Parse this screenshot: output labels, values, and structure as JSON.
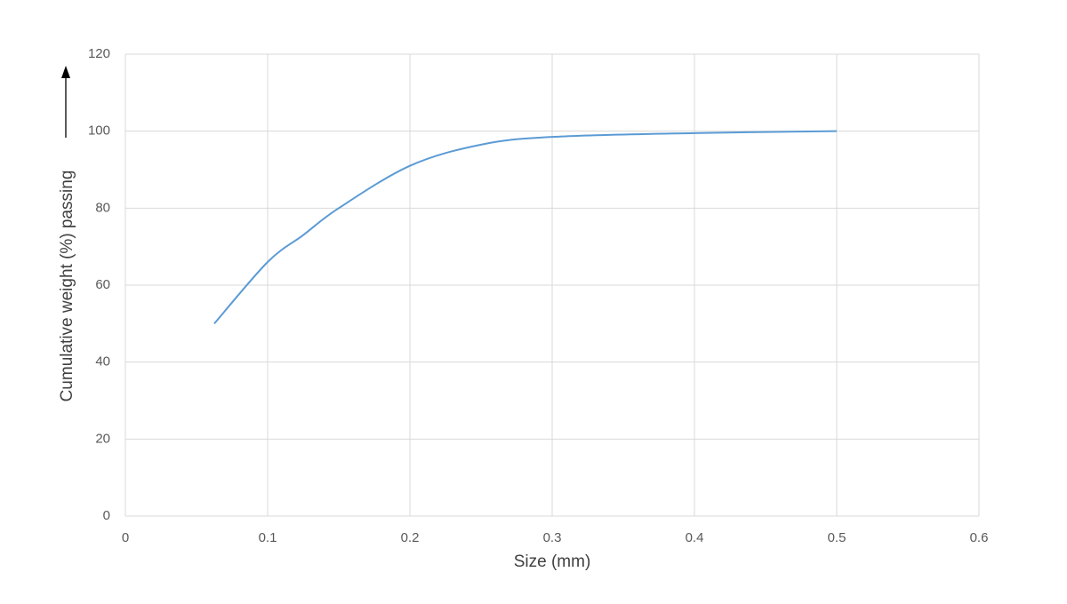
{
  "chart_data": {
    "type": "line",
    "x_label": "Size (mm)",
    "y_label": "Cumulative weight (%) passing",
    "x": [
      0.0625,
      0.1,
      0.125,
      0.15,
      0.2,
      0.25,
      0.3,
      0.4,
      0.5
    ],
    "series": [
      {
        "color": "#5b9bd5",
        "values": [
          50,
          66,
          73,
          80,
          91,
          96.5,
          98.5,
          99.5,
          100
        ]
      }
    ],
    "xlim": [
      0,
      0.6
    ],
    "xticks": [
      0,
      0.1,
      0.2,
      0.3,
      0.4,
      0.5,
      0.6
    ],
    "ylim": [
      0,
      120
    ],
    "yticks": [
      0,
      20,
      40,
      60,
      80,
      100,
      120
    ],
    "grid": true
  }
}
